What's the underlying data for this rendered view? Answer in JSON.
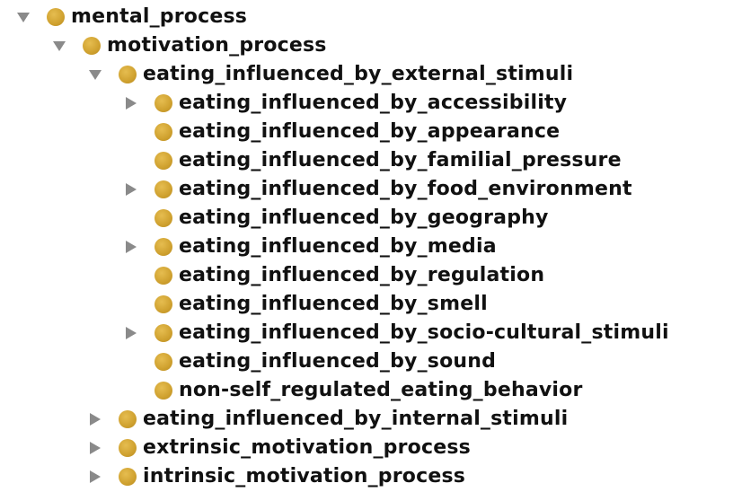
{
  "tree": {
    "nodes": [
      {
        "label": "mental_process",
        "toggle": "expanded"
      },
      {
        "label": "motivation_process",
        "toggle": "expanded"
      },
      {
        "label": "eating_influenced_by_external_stimuli",
        "toggle": "expanded"
      },
      {
        "label": "eating_influenced_by_accessibility",
        "toggle": "collapsed"
      },
      {
        "label": "eating_influenced_by_appearance",
        "toggle": "none"
      },
      {
        "label": "eating_influenced_by_familial_pressure",
        "toggle": "none"
      },
      {
        "label": "eating_influenced_by_food_environment",
        "toggle": "collapsed"
      },
      {
        "label": "eating_influenced_by_geography",
        "toggle": "none"
      },
      {
        "label": "eating_influenced_by_media",
        "toggle": "collapsed"
      },
      {
        "label": "eating_influenced_by_regulation",
        "toggle": "none"
      },
      {
        "label": "eating_influenced_by_smell",
        "toggle": "none"
      },
      {
        "label": "eating_influenced_by_socio-cultural_stimuli",
        "toggle": "collapsed"
      },
      {
        "label": "eating_influenced_by_sound",
        "toggle": "none"
      },
      {
        "label": "non-self_regulated_eating_behavior",
        "toggle": "none"
      },
      {
        "label": "eating_influenced_by_internal_stimuli",
        "toggle": "collapsed"
      },
      {
        "label": "extrinsic_motivation_process",
        "toggle": "collapsed"
      },
      {
        "label": "intrinsic_motivation_process",
        "toggle": "collapsed"
      }
    ]
  },
  "colors": {
    "class_dot": "#cfa12f",
    "toggle_arrow": "#8a8a8a",
    "text": "#111111"
  },
  "icons": {
    "expanded": "triangle-down-icon",
    "collapsed": "triangle-right-icon",
    "class": "class-circle-icon"
  }
}
